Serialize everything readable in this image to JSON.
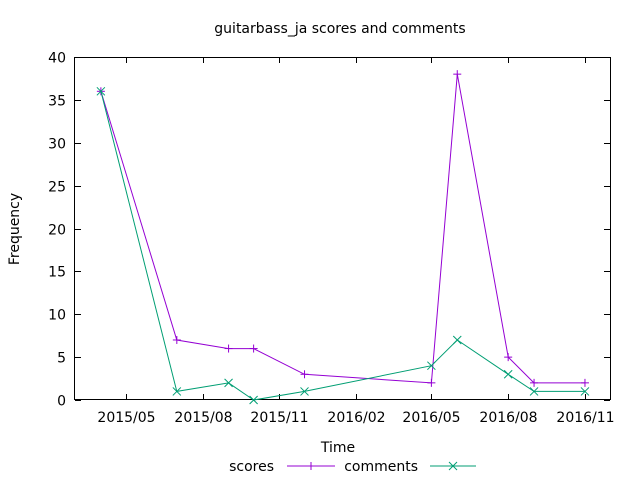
{
  "chart_data": {
    "type": "line",
    "title": "guitarbass_ja scores and comments",
    "xlabel": "Time",
    "ylabel": "Frequency",
    "xlim": [
      "2015-03-01",
      "2016-12-01"
    ],
    "ylim": [
      0,
      40
    ],
    "yticks": [
      0,
      5,
      10,
      15,
      20,
      25,
      30,
      35,
      40
    ],
    "xticks": [
      {
        "date": "2015-05-01",
        "label": "2015/05"
      },
      {
        "date": "2015-08-01",
        "label": "2015/08"
      },
      {
        "date": "2015-11-01",
        "label": "2015/11"
      },
      {
        "date": "2016-02-01",
        "label": "2016/02"
      },
      {
        "date": "2016-05-01",
        "label": "2016/05"
      },
      {
        "date": "2016-08-01",
        "label": "2016/08"
      },
      {
        "date": "2016-11-01",
        "label": "2016/11"
      }
    ],
    "grid": false,
    "legend_position": "bottom-center",
    "series": [
      {
        "name": "scores",
        "color": "#9400d3",
        "marker": "plus",
        "points": [
          {
            "x": "2015-04-01",
            "y": 36
          },
          {
            "x": "2015-07-01",
            "y": 7
          },
          {
            "x": "2015-09-01",
            "y": 6
          },
          {
            "x": "2015-10-01",
            "y": 6
          },
          {
            "x": "2015-12-01",
            "y": 3
          },
          {
            "x": "2016-05-01",
            "y": 2
          },
          {
            "x": "2016-06-01",
            "y": 38
          },
          {
            "x": "2016-08-01",
            "y": 5
          },
          {
            "x": "2016-09-01",
            "y": 2
          },
          {
            "x": "2016-11-01",
            "y": 2
          }
        ]
      },
      {
        "name": "comments",
        "color": "#009e73",
        "marker": "cross",
        "points": [
          {
            "x": "2015-04-01",
            "y": 36
          },
          {
            "x": "2015-07-01",
            "y": 1
          },
          {
            "x": "2015-09-01",
            "y": 2
          },
          {
            "x": "2015-10-01",
            "y": 0
          },
          {
            "x": "2015-12-01",
            "y": 1
          },
          {
            "x": "2016-05-01",
            "y": 4
          },
          {
            "x": "2016-06-01",
            "y": 7
          },
          {
            "x": "2016-08-01",
            "y": 3
          },
          {
            "x": "2016-09-01",
            "y": 1
          },
          {
            "x": "2016-11-01",
            "y": 1
          }
        ]
      }
    ]
  }
}
